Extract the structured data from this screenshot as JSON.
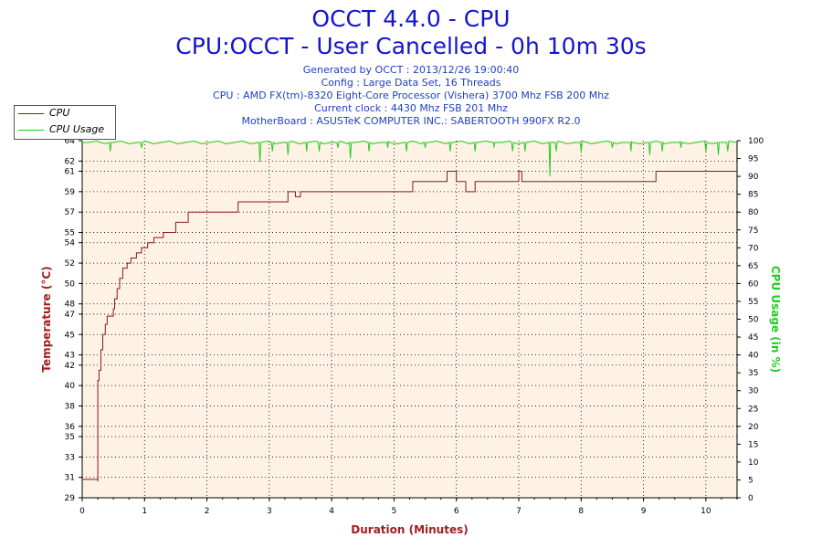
{
  "titles": {
    "main": "OCCT 4.4.0 - CPU",
    "sub": "CPU:OCCT - User Cancelled - 0h 10m 30s"
  },
  "info": [
    "Generated by OCCT : 2013/12/26 19:00:40",
    "Config : Large Data Set, 16 Threads",
    "CPU : AMD FX(tm)-8320 Eight-Core Processor (Vishera) 3700 Mhz FSB 200 Mhz",
    "Current clock : 4430 Mhz FSB 201 Mhz",
    "MotherBoard : ASUSTeK COMPUTER INC.: SABERTOOTH 990FX R2.0"
  ],
  "colors": {
    "cpu": "#8b1a1a",
    "usage": "#22cc22",
    "plot_bg": "#fdf2e4",
    "axis": "#000000"
  },
  "chart_data": {
    "type": "line",
    "xlabel": "Duration (Minutes)",
    "ylabel_left": "Temperature (°C)",
    "ylabel_right": "CPU Usage (in %)",
    "xlim": [
      0,
      10.5
    ],
    "ylim_left": [
      29,
      64
    ],
    "ylim_right": [
      0,
      100
    ],
    "x_ticks": [
      0,
      1,
      2,
      3,
      4,
      5,
      6,
      7,
      8,
      9,
      10
    ],
    "y_ticks_left": [
      29,
      31,
      33,
      35,
      36,
      38,
      40,
      42,
      43,
      45,
      47,
      48,
      50,
      52,
      54,
      55,
      57,
      59,
      61,
      62,
      64
    ],
    "y_ticks_right": [
      0,
      5,
      10,
      15,
      20,
      25,
      30,
      35,
      40,
      45,
      50,
      55,
      60,
      65,
      70,
      75,
      80,
      85,
      90,
      95,
      100
    ],
    "grid": true,
    "legend": "top-left",
    "series": [
      {
        "name": "CPU",
        "axis": "left",
        "x": [
          0,
          0.25,
          0.25,
          0.27,
          0.3,
          0.33,
          0.37,
          0.4,
          0.43,
          0.5,
          0.52,
          0.56,
          0.6,
          0.65,
          0.72,
          0.78,
          0.87,
          0.95,
          1.05,
          1.15,
          1.3,
          1.5,
          1.7,
          2.0,
          2.5,
          3.0,
          3.3,
          3.35,
          3.42,
          3.5,
          3.6,
          4.0,
          4.5,
          5.0,
          5.25,
          5.3,
          5.8,
          5.85,
          5.92,
          6.0,
          6.1,
          6.15,
          6.25,
          6.3,
          6.5,
          6.95,
          7.0,
          7.05,
          7.5,
          8.0,
          8.5,
          9.0,
          9.2,
          9.5,
          10.0,
          10.5
        ],
        "y": [
          30.8,
          30.6,
          40.5,
          41.5,
          43.5,
          45.0,
          46.0,
          46.8,
          46.8,
          47.5,
          48.5,
          49.5,
          50.5,
          51.5,
          52.0,
          52.5,
          53.0,
          53.5,
          54.0,
          54.5,
          55.0,
          56.0,
          57.0,
          57.0,
          58.0,
          58.0,
          59.0,
          59.0,
          58.5,
          59.0,
          59.0,
          59.0,
          59.0,
          59.0,
          59.0,
          60.0,
          60.0,
          61.0,
          61.0,
          60.0,
          60.0,
          59.0,
          59.0,
          60.0,
          60.0,
          60.0,
          61.0,
          60.0,
          60.0,
          60.0,
          60.0,
          60.0,
          61.0,
          61.0,
          61.0,
          61.0
        ]
      },
      {
        "name": "CPU Usage",
        "axis": "right",
        "baseline": 99.5,
        "x": [
          0,
          10.5
        ],
        "y": [
          99.5,
          99.5
        ],
        "dips": [
          [
            0.45,
            97
          ],
          [
            0.95,
            98
          ],
          [
            2.85,
            94
          ],
          [
            3.05,
            97
          ],
          [
            3.3,
            96
          ],
          [
            3.6,
            97
          ],
          [
            3.8,
            97
          ],
          [
            4.1,
            98
          ],
          [
            4.3,
            95
          ],
          [
            4.6,
            97
          ],
          [
            4.9,
            98
          ],
          [
            5.2,
            97
          ],
          [
            5.5,
            98
          ],
          [
            5.9,
            97
          ],
          [
            6.3,
            97
          ],
          [
            6.6,
            98
          ],
          [
            6.9,
            97
          ],
          [
            7.1,
            97
          ],
          [
            7.5,
            90
          ],
          [
            7.6,
            97
          ],
          [
            8.0,
            97
          ],
          [
            8.5,
            98
          ],
          [
            8.8,
            97
          ],
          [
            9.1,
            96
          ],
          [
            9.3,
            97
          ],
          [
            9.6,
            98
          ],
          [
            10.0,
            97
          ],
          [
            10.2,
            96
          ],
          [
            10.35,
            97
          ]
        ]
      }
    ]
  }
}
